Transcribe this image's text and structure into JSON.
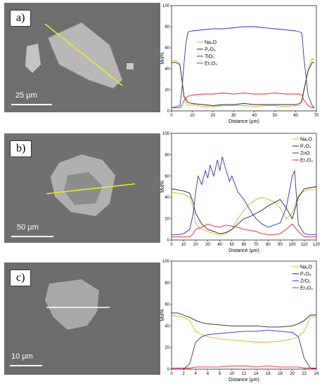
{
  "panels": [
    {
      "label": "a)",
      "scale": "25 µm"
    },
    {
      "label": "b)",
      "scale": "50 µm"
    },
    {
      "label": "c)",
      "scale": "10 µm"
    }
  ],
  "colors": {
    "Na": "#f5a623",
    "P": "#222222",
    "Ti": "#2b2bd6",
    "Zn": "#2b2bd6",
    "Zr": "#2b2bd6",
    "Er": "#e8202a"
  },
  "chart_data": [
    {
      "type": "line",
      "xlabel": "Distance (µm)",
      "ylabel": "Mol%",
      "xlim": [
        0,
        70
      ],
      "ylim": [
        0,
        100
      ],
      "xticks": [
        0,
        10,
        20,
        30,
        40,
        50,
        60,
        70
      ],
      "yticks": [
        0,
        20,
        40,
        60,
        80,
        100
      ],
      "legend_position": "center-left",
      "series": [
        {
          "name": "Na₂O",
          "color": "#f5a623",
          "x": [
            0,
            2,
            4,
            5,
            6,
            8,
            10,
            15,
            20,
            25,
            30,
            35,
            40,
            45,
            50,
            55,
            60,
            62,
            63,
            64,
            66,
            68,
            69
          ],
          "y": [
            48,
            48,
            45,
            30,
            12,
            5,
            6,
            4,
            4,
            5,
            5,
            5,
            4,
            5,
            5,
            4,
            5,
            5,
            8,
            18,
            40,
            50,
            48
          ]
        },
        {
          "name": "P₂O₅",
          "color": "#222222",
          "x": [
            0,
            2,
            4,
            5,
            6,
            8,
            10,
            15,
            20,
            25,
            30,
            35,
            40,
            45,
            50,
            55,
            60,
            62,
            63,
            64,
            66,
            68,
            69
          ],
          "y": [
            46,
            46,
            44,
            30,
            14,
            8,
            7,
            6,
            5,
            6,
            6,
            7,
            6,
            6,
            6,
            6,
            6,
            7,
            10,
            20,
            38,
            46,
            46
          ]
        },
        {
          "name": "TiO₂",
          "color": "#2b2bd6",
          "x": [
            0,
            2,
            4,
            5,
            6,
            7,
            8,
            10,
            15,
            20,
            25,
            30,
            35,
            40,
            45,
            50,
            55,
            60,
            62,
            63,
            64,
            66,
            68,
            69
          ],
          "y": [
            3,
            4,
            5,
            20,
            45,
            65,
            75,
            76,
            77,
            78,
            78,
            79,
            80,
            80,
            79,
            78,
            77,
            76,
            75,
            74,
            50,
            15,
            5,
            3
          ]
        },
        {
          "name": "Er₂O₃",
          "color": "#e8202a",
          "x": [
            0,
            2,
            4,
            5,
            6,
            8,
            10,
            15,
            20,
            25,
            30,
            35,
            40,
            45,
            50,
            55,
            60,
            62,
            63,
            64,
            66,
            68,
            69
          ],
          "y": [
            3,
            3,
            3,
            5,
            10,
            14,
            15,
            16,
            16,
            17,
            16,
            17,
            16,
            16,
            17,
            16,
            16,
            16,
            15,
            10,
            5,
            3,
            3
          ]
        }
      ]
    },
    {
      "type": "line",
      "xlabel": "Distance (µm)",
      "ylabel": "Mol%",
      "xlim": [
        0,
        120
      ],
      "ylim": [
        0,
        100
      ],
      "xticks": [
        0,
        10,
        20,
        30,
        40,
        50,
        60,
        70,
        80,
        90,
        100,
        110,
        120
      ],
      "yticks": [
        0,
        20,
        40,
        60,
        80,
        100
      ],
      "legend_position": "top-right",
      "series": [
        {
          "name": "Na₂O",
          "color": "#f5a623",
          "x": [
            0,
            5,
            10,
            15,
            18,
            20,
            25,
            30,
            35,
            40,
            45,
            50,
            55,
            60,
            65,
            70,
            75,
            80,
            85,
            90,
            95,
            100,
            105,
            110,
            115,
            120
          ],
          "y": [
            45,
            44,
            43,
            40,
            30,
            15,
            10,
            8,
            6,
            5,
            6,
            10,
            20,
            28,
            34,
            38,
            40,
            38,
            36,
            30,
            20,
            25,
            42,
            46,
            47,
            47
          ]
        },
        {
          "name": "P₂O₅",
          "color": "#222222",
          "x": [
            0,
            5,
            10,
            15,
            18,
            20,
            25,
            30,
            35,
            40,
            45,
            50,
            55,
            60,
            65,
            70,
            75,
            80,
            85,
            90,
            95,
            100,
            105,
            110,
            115,
            120
          ],
          "y": [
            48,
            47,
            46,
            44,
            35,
            25,
            15,
            10,
            8,
            6,
            7,
            10,
            15,
            20,
            22,
            25,
            28,
            32,
            35,
            38,
            30,
            20,
            40,
            48,
            49,
            50
          ]
        },
        {
          "name": "ZnO",
          "color": "#2b2bd6",
          "x": [
            0,
            5,
            10,
            15,
            18,
            20,
            22,
            25,
            28,
            30,
            32,
            35,
            38,
            40,
            42,
            45,
            48,
            50,
            55,
            60,
            65,
            70,
            75,
            80,
            85,
            90,
            95,
            100,
            102,
            105,
            110,
            115,
            120
          ],
          "y": [
            5,
            5,
            6,
            10,
            25,
            45,
            60,
            52,
            65,
            58,
            70,
            60,
            75,
            65,
            78,
            66,
            55,
            60,
            45,
            38,
            28,
            20,
            15,
            12,
            14,
            16,
            30,
            60,
            65,
            15,
            6,
            5,
            5
          ]
        },
        {
          "name": "Er₂O₃",
          "color": "#e8202a",
          "x": [
            0,
            5,
            10,
            15,
            18,
            20,
            25,
            30,
            35,
            40,
            45,
            50,
            55,
            60,
            65,
            70,
            75,
            80,
            85,
            90,
            95,
            100,
            105,
            110,
            115,
            120
          ],
          "y": [
            3,
            3,
            3,
            3,
            6,
            10,
            12,
            15,
            13,
            12,
            14,
            13,
            12,
            10,
            9,
            8,
            6,
            5,
            5,
            6,
            10,
            15,
            8,
            3,
            3,
            3
          ]
        }
      ]
    },
    {
      "type": "line",
      "xlabel": "Distance (µm)",
      "ylabel": "Mol%",
      "xlim": [
        0,
        24
      ],
      "ylim": [
        0,
        100
      ],
      "xticks": [
        0,
        2,
        4,
        6,
        8,
        10,
        12,
        14,
        16,
        18,
        20,
        22,
        24
      ],
      "yticks": [
        0,
        20,
        40,
        60,
        80,
        100
      ],
      "legend_position": "top-right",
      "series": [
        {
          "name": "Na₂O",
          "color": "#f5a623",
          "x": [
            0,
            1,
            2,
            3,
            4,
            5,
            6,
            8,
            10,
            12,
            14,
            16,
            18,
            20,
            21,
            22,
            23,
            24
          ],
          "y": [
            50,
            49,
            48,
            45,
            35,
            32,
            30,
            28,
            27,
            26,
            25,
            25,
            26,
            28,
            30,
            35,
            48,
            48
          ]
        },
        {
          "name": "P₂O₅",
          "color": "#222222",
          "x": [
            0,
            1,
            2,
            3,
            4,
            5,
            6,
            8,
            10,
            12,
            14,
            16,
            18,
            20,
            21,
            22,
            23,
            24
          ],
          "y": [
            52,
            52,
            50,
            48,
            45,
            43,
            42,
            41,
            40,
            40,
            40,
            39,
            39,
            40,
            42,
            45,
            50,
            50
          ]
        },
        {
          "name": "ZrO₂",
          "color": "#2b2bd6",
          "x": [
            0,
            1,
            2,
            3,
            4,
            5,
            6,
            8,
            10,
            12,
            14,
            16,
            18,
            20,
            21,
            22,
            23,
            24
          ],
          "y": [
            0,
            0,
            0,
            5,
            25,
            30,
            32,
            33,
            34,
            35,
            35,
            36,
            35,
            34,
            30,
            10,
            1,
            0
          ]
        },
        {
          "name": "Er₂O₃",
          "color": "#e8202a",
          "x": [
            0,
            1,
            2,
            3,
            4,
            5,
            6,
            8,
            10,
            12,
            14,
            16,
            18,
            20,
            21,
            22,
            23,
            24
          ],
          "y": [
            1,
            1,
            1,
            1,
            2,
            2,
            2,
            2,
            3,
            3,
            2,
            3,
            2,
            2,
            2,
            1,
            1,
            1
          ]
        }
      ]
    }
  ]
}
